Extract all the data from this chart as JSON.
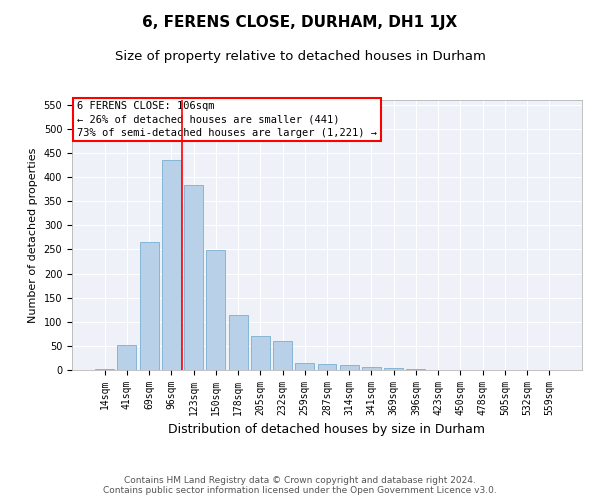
{
  "title": "6, FERENS CLOSE, DURHAM, DH1 1JX",
  "subtitle": "Size of property relative to detached houses in Durham",
  "xlabel": "Distribution of detached houses by size in Durham",
  "ylabel": "Number of detached properties",
  "categories": [
    "14sqm",
    "41sqm",
    "69sqm",
    "96sqm",
    "123sqm",
    "150sqm",
    "178sqm",
    "205sqm",
    "232sqm",
    "259sqm",
    "287sqm",
    "314sqm",
    "341sqm",
    "369sqm",
    "396sqm",
    "423sqm",
    "450sqm",
    "478sqm",
    "505sqm",
    "532sqm",
    "559sqm"
  ],
  "values": [
    2,
    52,
    265,
    435,
    383,
    248,
    114,
    70,
    60,
    15,
    13,
    10,
    6,
    5,
    3,
    1,
    0,
    0,
    1,
    0,
    0
  ],
  "bar_color": "#b8d0e8",
  "bar_edge_color": "#7aaed0",
  "vline_x": 3.5,
  "vline_color": "red",
  "annotation_text": "6 FERENS CLOSE: 106sqm\n← 26% of detached houses are smaller (441)\n73% of semi-detached houses are larger (1,221) →",
  "annotation_box_color": "white",
  "annotation_box_edge": "red",
  "ylim": [
    0,
    560
  ],
  "yticks": [
    0,
    50,
    100,
    150,
    200,
    250,
    300,
    350,
    400,
    450,
    500,
    550
  ],
  "bg_color": "#eef2f8",
  "footer1": "Contains HM Land Registry data © Crown copyright and database right 2024.",
  "footer2": "Contains public sector information licensed under the Open Government Licence v3.0.",
  "title_fontsize": 11,
  "subtitle_fontsize": 9.5,
  "xlabel_fontsize": 9,
  "ylabel_fontsize": 8,
  "tick_fontsize": 7,
  "annotation_fontsize": 7.5,
  "footer_fontsize": 6.5
}
